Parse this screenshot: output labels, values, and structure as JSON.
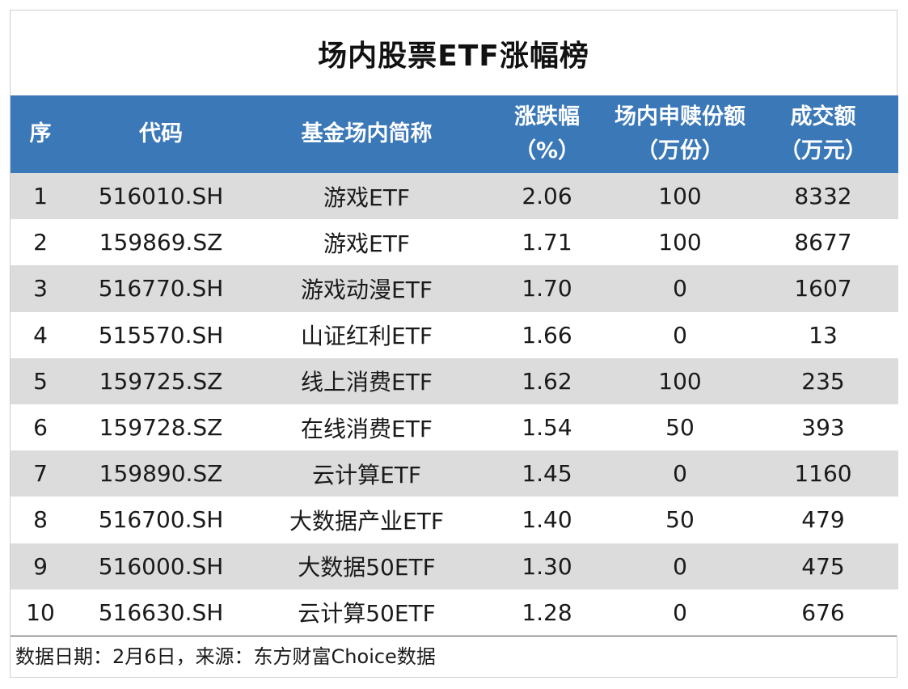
{
  "title": "场内股票ETF涨幅榜",
  "headers": {
    "index": "序",
    "code": "代码",
    "name": "基金场内简称",
    "change_line1": "涨跌幅",
    "change_line2": "（%）",
    "subscription_line1": "场内申赎份额",
    "subscription_line2": "（万份）",
    "turnover_line1": "成交额",
    "turnover_line2": "（万元）"
  },
  "rows": [
    {
      "index": "1",
      "code": "516010.SH",
      "name": "游戏ETF",
      "change": "2.06",
      "subscription": "100",
      "turnover": "8332"
    },
    {
      "index": "2",
      "code": "159869.SZ",
      "name": "游戏ETF",
      "change": "1.71",
      "subscription": "100",
      "turnover": "8677"
    },
    {
      "index": "3",
      "code": "516770.SH",
      "name": "游戏动漫ETF",
      "change": "1.70",
      "subscription": "0",
      "turnover": "1607"
    },
    {
      "index": "4",
      "code": "515570.SH",
      "name": "山证红利ETF",
      "change": "1.66",
      "subscription": "0",
      "turnover": "13"
    },
    {
      "index": "5",
      "code": "159725.SZ",
      "name": "线上消费ETF",
      "change": "1.62",
      "subscription": "100",
      "turnover": "235"
    },
    {
      "index": "6",
      "code": "159728.SZ",
      "name": "在线消费ETF",
      "change": "1.54",
      "subscription": "50",
      "turnover": "393"
    },
    {
      "index": "7",
      "code": "159890.SZ",
      "name": "云计算ETF",
      "change": "1.45",
      "subscription": "0",
      "turnover": "1160"
    },
    {
      "index": "8",
      "code": "516700.SH",
      "name": "大数据产业ETF",
      "change": "1.40",
      "subscription": "50",
      "turnover": "479"
    },
    {
      "index": "9",
      "code": "516000.SH",
      "name": "大数据50ETF",
      "change": "1.30",
      "subscription": "0",
      "turnover": "475"
    },
    {
      "index": "10",
      "code": "516630.SH",
      "name": "云计算50ETF",
      "change": "1.28",
      "subscription": "0",
      "turnover": "676"
    }
  ],
  "footer": "数据日期：2月6日，来源：东方财富Choice数据",
  "colors": {
    "header_bg": "#3a78b8",
    "header_text": "#ffffff",
    "stripe_bg": "#dcdcdc",
    "row_bg": "#ffffff"
  }
}
